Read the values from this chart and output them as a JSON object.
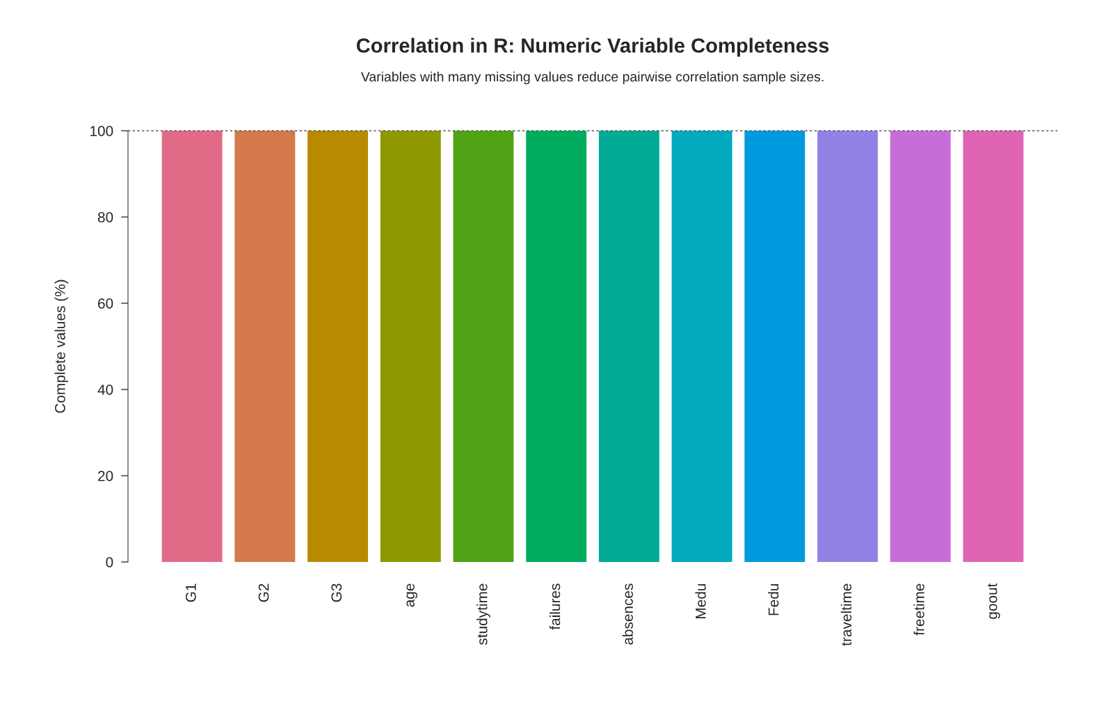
{
  "chart_data": {
    "type": "bar",
    "title": "Correlation in R: Numeric Variable Completeness",
    "subtitle": "Variables with many missing values reduce pairwise correlation sample sizes.",
    "ylabel": "Complete values (%)",
    "categories": [
      "G1",
      "G2",
      "G3",
      "age",
      "studytime",
      "failures",
      "absences",
      "Medu",
      "Fedu",
      "traveltime",
      "freetime",
      "goout"
    ],
    "values": [
      100,
      100,
      100,
      100,
      100,
      100,
      100,
      100,
      100,
      100,
      100,
      100
    ],
    "colors": [
      "#E16A86",
      "#D3794A",
      "#B88A00",
      "#8E9900",
      "#50A315",
      "#00AD5F",
      "#00AC96",
      "#00A9BE",
      "#009ADE",
      "#9183E6",
      "#C86DD7",
      "#E064B4"
    ],
    "ylim": [
      0,
      100
    ],
    "yticks": [
      0,
      20,
      40,
      60,
      80,
      100
    ],
    "ref_lines": [
      {
        "axis": "y",
        "value": 100,
        "color": "#555555",
        "line_style": "dotted"
      }
    ],
    "grid": false,
    "legend": false
  }
}
